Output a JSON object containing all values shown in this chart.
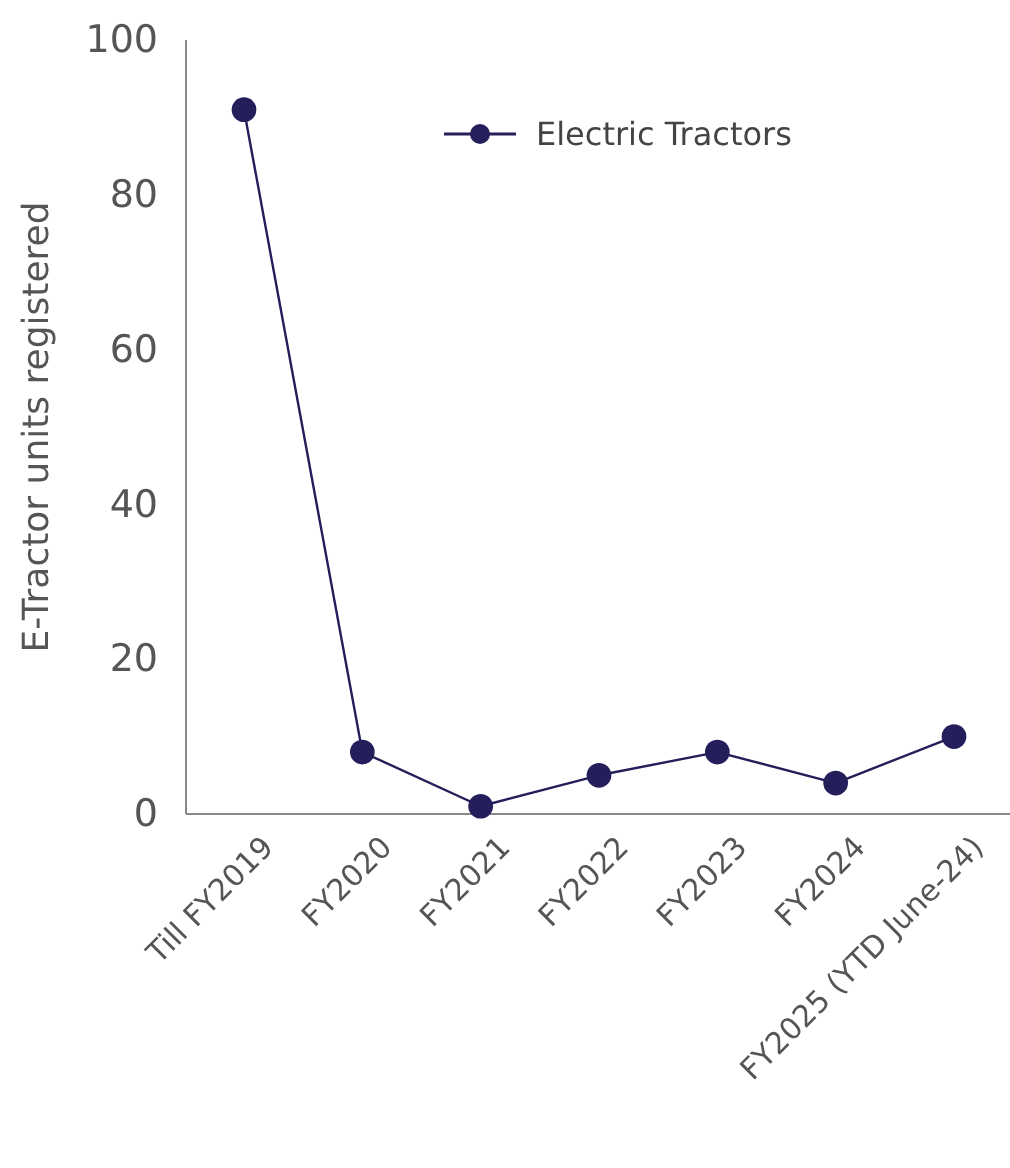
{
  "chart_data": {
    "type": "line",
    "ylabel": "E-Tractor units registered",
    "categories": [
      "Till FY2019",
      "FY2020",
      "FY2021",
      "FY2022",
      "FY2023",
      "FY2024",
      "FY2025 (YTD June-24)"
    ],
    "series": [
      {
        "name": "Electric Tractors",
        "color": "#241f5b",
        "values": [
          91,
          8,
          1,
          5,
          8,
          4,
          10
        ]
      }
    ],
    "ylim": [
      0,
      100
    ],
    "yticks": [
      0,
      20,
      40,
      60,
      80,
      100
    ],
    "grid": false,
    "legend": "top right",
    "marker": "circle",
    "line_style": "solid"
  }
}
